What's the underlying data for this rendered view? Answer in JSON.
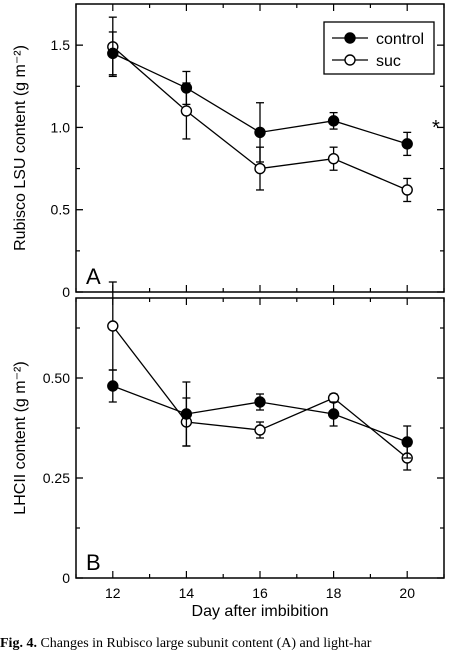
{
  "chart_data": [
    {
      "type": "line",
      "panel_label": "A",
      "ylabel": "Rubisco LSU content (g m⁻²)",
      "x": [
        12,
        14,
        16,
        18,
        20
      ],
      "xlim": [
        11,
        21
      ],
      "ylim": [
        0,
        1.75
      ],
      "yticks": [
        0,
        0.5,
        1.0,
        1.5
      ],
      "ytick_labels": [
        "0",
        "0.5",
        "1.0",
        "1.5"
      ],
      "series": [
        {
          "name": "control",
          "marker": "filled-circle",
          "values": [
            1.45,
            1.24,
            0.97,
            1.04,
            0.9
          ],
          "errors": [
            0.13,
            0.1,
            0.18,
            0.05,
            0.07
          ]
        },
        {
          "name": "suc",
          "marker": "open-circle",
          "values": [
            1.49,
            1.1,
            0.75,
            0.81,
            0.62
          ],
          "errors": [
            0.18,
            0.17,
            0.13,
            0.07,
            0.07
          ]
        }
      ],
      "annotation": "*",
      "legend": "top-right"
    },
    {
      "type": "line",
      "panel_label": "B",
      "ylabel": "LHCII content (g m⁻²)",
      "xlabel": "Day after imbibition",
      "x": [
        12,
        14,
        16,
        18,
        20
      ],
      "xticks": [
        12,
        14,
        16,
        18,
        20
      ],
      "xlim": [
        11,
        21
      ],
      "ylim": [
        0,
        0.7
      ],
      "yticks": [
        0,
        0.25,
        0.5
      ],
      "ytick_labels": [
        "0",
        "0.25",
        "0.50"
      ],
      "series": [
        {
          "name": "control",
          "marker": "filled-circle",
          "values": [
            0.48,
            0.41,
            0.44,
            0.41,
            0.34
          ],
          "errors": [
            0.04,
            0.08,
            0.02,
            0.03,
            0.04
          ]
        },
        {
          "name": "suc",
          "marker": "open-circle",
          "values": [
            0.63,
            0.39,
            0.37,
            0.45,
            0.3
          ],
          "errors": [
            0.11,
            0.06,
            0.02,
            0.01,
            0.03
          ]
        }
      ]
    }
  ],
  "caption": {
    "label": "Fig. 4.",
    "text": "Changes in Rubisco large subunit content (A) and light-har"
  }
}
